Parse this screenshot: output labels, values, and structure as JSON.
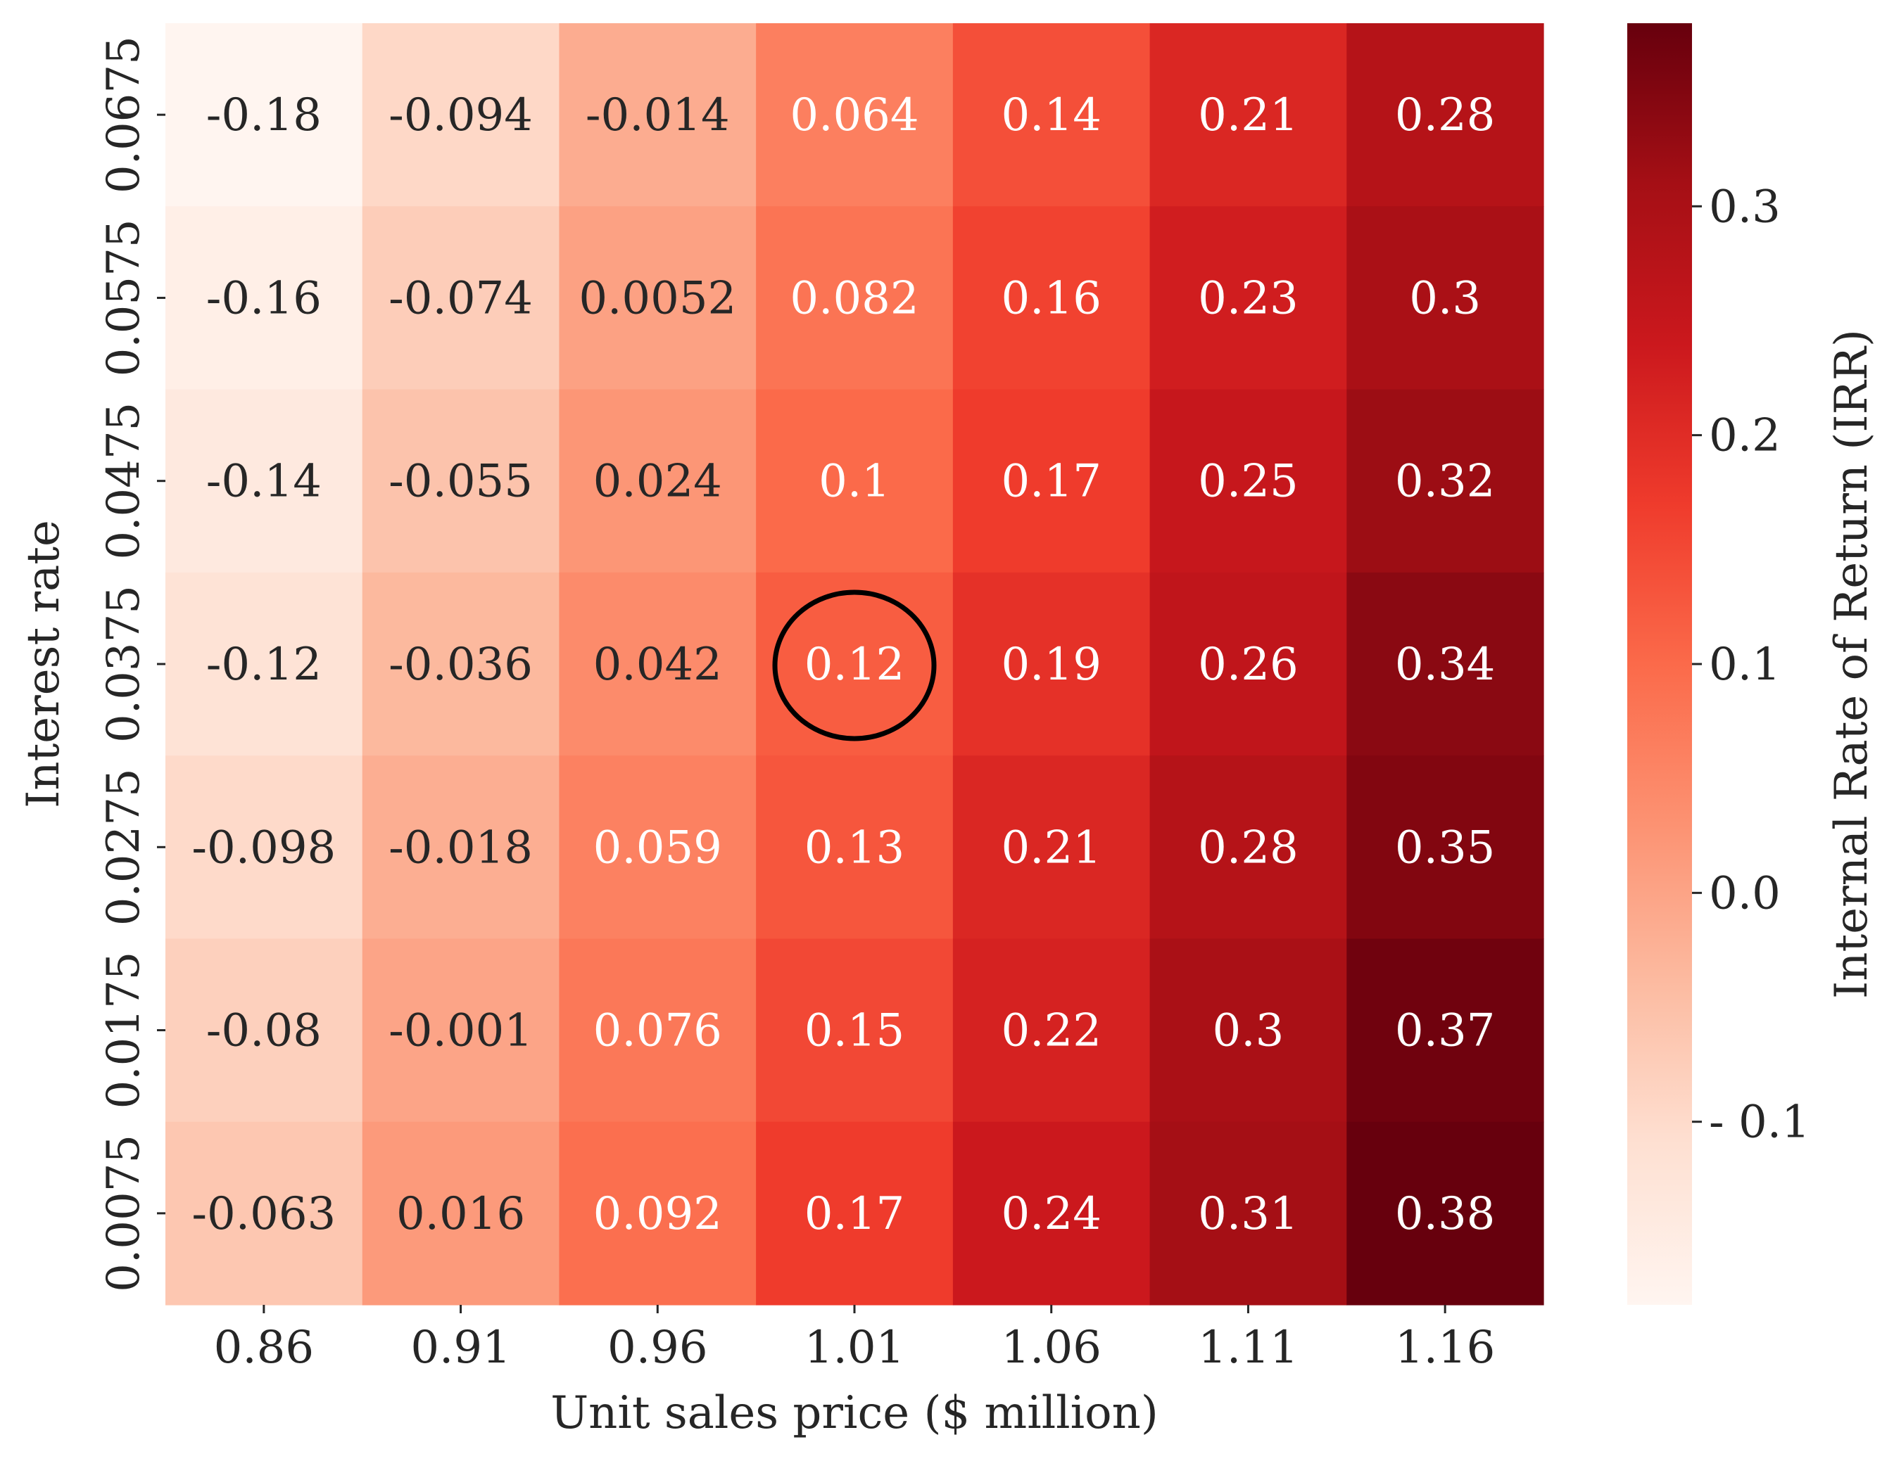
{
  "chart_data": {
    "type": "heatmap",
    "title": "",
    "xlabel": "Unit sales price ($ million)",
    "ylabel": "Interest rate",
    "colorbar_label": "Internal Rate of Return (IRR)",
    "colormap": "Reds",
    "x_categories": [
      "0.86",
      "0.91",
      "0.96",
      "1.01",
      "1.06",
      "1.11",
      "1.16"
    ],
    "y_categories": [
      "0.0675",
      "0.0575",
      "0.0475",
      "0.0375",
      "0.0275",
      "0.0175",
      "0.0075"
    ],
    "cell_labels": [
      [
        "-0.18",
        "-0.094",
        "-0.014",
        "0.064",
        "0.14",
        "0.21",
        "0.28"
      ],
      [
        "-0.16",
        "-0.074",
        "0.0052",
        "0.082",
        "0.16",
        "0.23",
        "0.3"
      ],
      [
        "-0.14",
        "-0.055",
        "0.024",
        "0.1",
        "0.17",
        "0.25",
        "0.32"
      ],
      [
        "-0.12",
        "-0.036",
        "0.042",
        "0.12",
        "0.19",
        "0.26",
        "0.34"
      ],
      [
        "-0.098",
        "-0.018",
        "0.059",
        "0.13",
        "0.21",
        "0.28",
        "0.35"
      ],
      [
        "-0.08",
        "-0.001",
        "0.076",
        "0.15",
        "0.22",
        "0.3",
        "0.37"
      ],
      [
        "-0.063",
        "0.016",
        "0.092",
        "0.17",
        "0.24",
        "0.31",
        "0.38"
      ]
    ],
    "values": [
      [
        -0.18,
        -0.094,
        -0.014,
        0.064,
        0.14,
        0.21,
        0.28
      ],
      [
        -0.16,
        -0.074,
        0.0052,
        0.082,
        0.16,
        0.23,
        0.3
      ],
      [
        -0.14,
        -0.055,
        0.024,
        0.1,
        0.17,
        0.25,
        0.32
      ],
      [
        -0.12,
        -0.036,
        0.042,
        0.12,
        0.19,
        0.26,
        0.34
      ],
      [
        -0.098,
        -0.018,
        0.059,
        0.13,
        0.21,
        0.28,
        0.35
      ],
      [
        -0.08,
        -0.001,
        0.076,
        0.15,
        0.22,
        0.3,
        0.37
      ],
      [
        -0.063,
        0.016,
        0.092,
        0.17,
        0.24,
        0.31,
        0.38
      ]
    ],
    "vmin": -0.18,
    "vmax": 0.38,
    "colorbar_ticks": [
      {
        "value": 0.3,
        "label": "0.3"
      },
      {
        "value": 0.2,
        "label": "0.2"
      },
      {
        "value": 0.1,
        "label": "0.1"
      },
      {
        "value": 0.0,
        "label": "0.0"
      },
      {
        "value": -0.1,
        "label": "- 0.1"
      }
    ],
    "highlight": {
      "x": "1.01",
      "y": "0.0375",
      "shape": "circle"
    },
    "grid": false,
    "legend": "colorbar-right"
  }
}
